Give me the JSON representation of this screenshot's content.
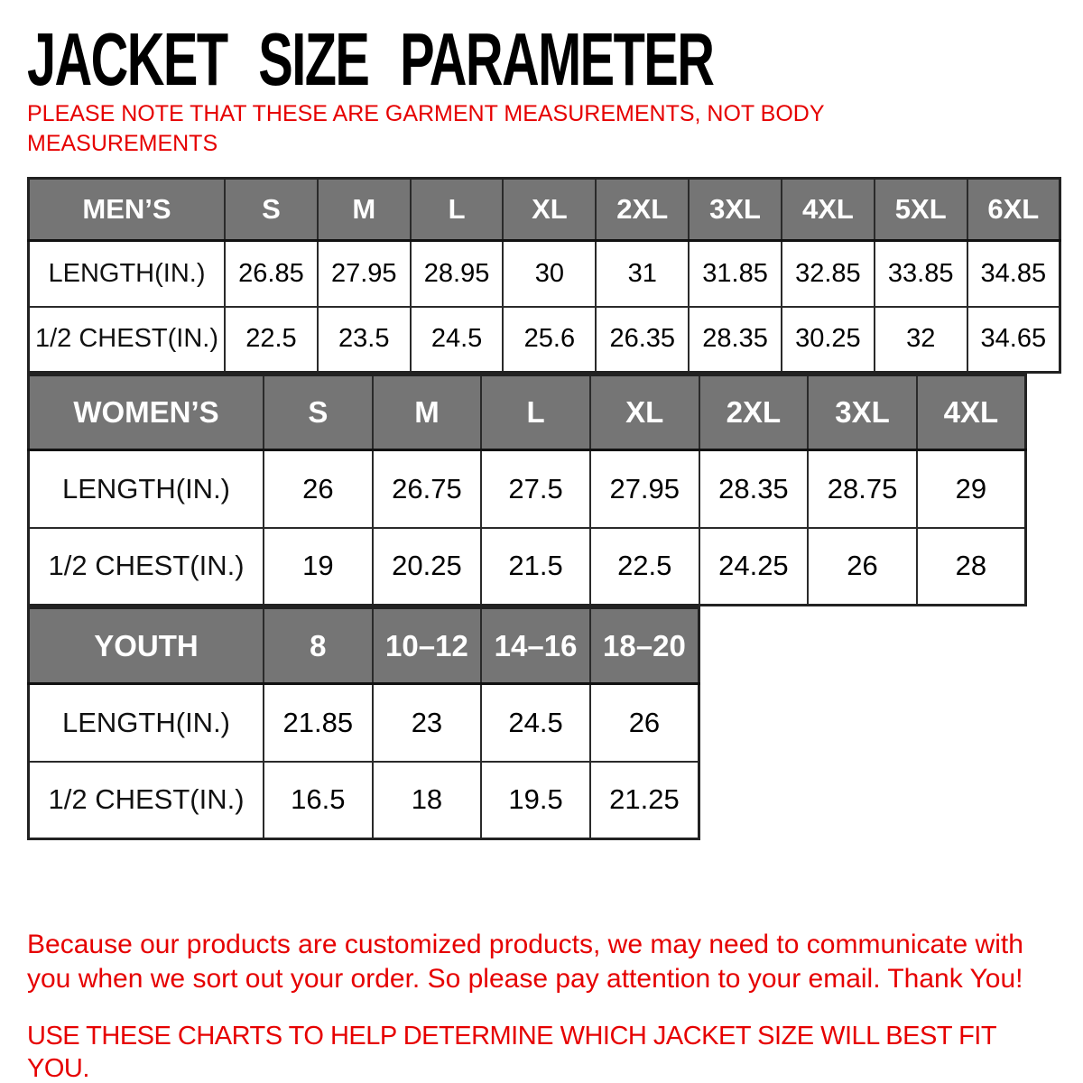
{
  "title": "JACKET SIZE PARAMETER",
  "note": "PLEASE NOTE THAT THESE ARE GARMENT MEASUREMENTS, NOT BODY MEASUREMENTS",
  "tables": [
    {
      "slug": "mens",
      "name": "MEN’S",
      "sizes": [
        "S",
        "M",
        "L",
        "XL",
        "2XL",
        "3XL",
        "4XL",
        "5XL",
        "6XL"
      ],
      "rows": [
        {
          "label": "LENGTH(IN.)",
          "values": [
            "26.85",
            "27.95",
            "28.95",
            "30",
            "31",
            "31.85",
            "32.85",
            "33.85",
            "34.85"
          ]
        },
        {
          "label": "1/2 CHEST(IN.)",
          "values": [
            "22.5",
            "23.5",
            "24.5",
            "25.6",
            "26.35",
            "28.35",
            "30.25",
            "32",
            "34.65"
          ]
        }
      ]
    },
    {
      "slug": "womens",
      "name": "WOMEN’S",
      "sizes": [
        "S",
        "M",
        "L",
        "XL",
        "2XL",
        "3XL",
        "4XL"
      ],
      "rows": [
        {
          "label": "LENGTH(IN.)",
          "values": [
            "26",
            "26.75",
            "27.5",
            "27.95",
            "28.35",
            "28.75",
            "29"
          ]
        },
        {
          "label": "1/2 CHEST(IN.)",
          "values": [
            "19",
            "20.25",
            "21.5",
            "22.5",
            "24.25",
            "26",
            "28"
          ]
        }
      ]
    },
    {
      "slug": "youth",
      "name": "YOUTH",
      "sizes": [
        "8",
        "10–12",
        "14–16",
        "18–20"
      ],
      "rows": [
        {
          "label": "LENGTH(IN.)",
          "values": [
            "21.85",
            "23",
            "24.5",
            "26"
          ]
        },
        {
          "label": "1/2 CHEST(IN.)",
          "values": [
            "16.5",
            "18",
            "19.5",
            "21.25"
          ]
        }
      ]
    }
  ],
  "footer": {
    "line1": "Because our products are customized products, we may need to communicate with you when we sort out your order. So please pay attention to your email. Thank You!",
    "line2": "USE THESE CHARTS TO HELP DETERMINE WHICH JACKET SIZE WILL BEST FIT YOU."
  },
  "colors": {
    "header_bg": "#757575",
    "header_text": "#ffffff",
    "border": "#2a2a2a",
    "accent_red": "#e60000",
    "title_black": "#000000"
  }
}
